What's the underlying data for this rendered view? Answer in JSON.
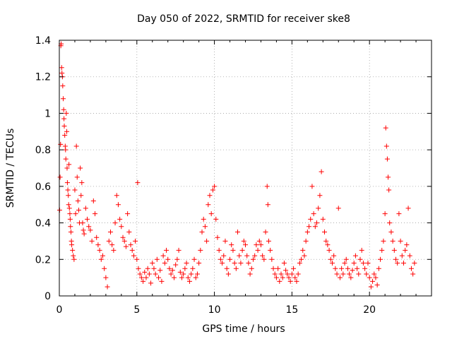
{
  "chart_data": {
    "type": "scatter",
    "title": "Day 050 of 2022, SRMTID for receiver ske8",
    "xlabel": "GPS time / hours",
    "ylabel": "SRMTID / TECUs",
    "xlim": [
      0,
      24
    ],
    "ylim": [
      0,
      1.4
    ],
    "xticks": [
      0,
      5,
      10,
      15,
      20
    ],
    "yticks": [
      0,
      0.2,
      0.4,
      0.6,
      0.8,
      1,
      1.2,
      1.4
    ],
    "xtick_labels": [
      "0",
      "5",
      "10",
      "15",
      "20"
    ],
    "ytick_labels": [
      "0",
      "0.2",
      "0.4",
      "0.6",
      "0.8",
      "1",
      "1.2",
      "1.4"
    ],
    "grid": true,
    "marker": "+",
    "color": "#ff0000",
    "series": [
      {
        "name": "SRMTID",
        "points": [
          [
            0.02,
            0.47
          ],
          [
            0.05,
            0.65
          ],
          [
            0.08,
            0.83
          ],
          [
            0.1,
            1.37
          ],
          [
            0.12,
            1.38
          ],
          [
            0.15,
            1.25
          ],
          [
            0.17,
            1.22
          ],
          [
            0.2,
            1.2
          ],
          [
            0.22,
            1.15
          ],
          [
            0.25,
            1.08
          ],
          [
            0.28,
            1.02
          ],
          [
            0.3,
            0.97
          ],
          [
            0.32,
            0.93
          ],
          [
            0.35,
            0.88
          ],
          [
            0.38,
            0.82
          ],
          [
            0.4,
            0.8
          ],
          [
            0.42,
            0.75
          ],
          [
            0.45,
            1.0
          ],
          [
            0.48,
            0.9
          ],
          [
            0.5,
            0.7
          ],
          [
            0.52,
            0.62
          ],
          [
            0.55,
            0.58
          ],
          [
            0.58,
            0.55
          ],
          [
            0.6,
            0.5
          ],
          [
            0.62,
            0.72
          ],
          [
            0.65,
            0.48
          ],
          [
            0.68,
            0.45
          ],
          [
            0.7,
            0.42
          ],
          [
            0.72,
            0.38
          ],
          [
            0.75,
            0.35
          ],
          [
            0.78,
            0.3
          ],
          [
            0.8,
            0.28
          ],
          [
            0.85,
            0.25
          ],
          [
            0.9,
            0.22
          ],
          [
            0.95,
            0.2
          ],
          [
            1.0,
            0.58
          ],
          [
            1.05,
            0.45
          ],
          [
            1.1,
            0.82
          ],
          [
            1.15,
            0.65
          ],
          [
            1.2,
            0.52
          ],
          [
            1.25,
            0.47
          ],
          [
            1.3,
            0.4
          ],
          [
            1.35,
            0.7
          ],
          [
            1.4,
            0.55
          ],
          [
            1.45,
            0.62
          ],
          [
            1.5,
            0.4
          ],
          [
            1.55,
            0.36
          ],
          [
            1.6,
            0.34
          ],
          [
            1.7,
            0.48
          ],
          [
            1.8,
            0.42
          ],
          [
            1.9,
            0.38
          ],
          [
            2.0,
            0.36
          ],
          [
            2.1,
            0.3
          ],
          [
            2.2,
            0.52
          ],
          [
            2.3,
            0.45
          ],
          [
            2.4,
            0.32
          ],
          [
            2.5,
            0.28
          ],
          [
            2.6,
            0.25
          ],
          [
            2.7,
            0.2
          ],
          [
            2.8,
            0.22
          ],
          [
            2.9,
            0.15
          ],
          [
            3.0,
            0.1
          ],
          [
            3.1,
            0.05
          ],
          [
            3.2,
            0.3
          ],
          [
            3.3,
            0.35
          ],
          [
            3.4,
            0.28
          ],
          [
            3.5,
            0.25
          ],
          [
            3.6,
            0.4
          ],
          [
            3.7,
            0.55
          ],
          [
            3.8,
            0.5
          ],
          [
            3.9,
            0.42
          ],
          [
            4.0,
            0.38
          ],
          [
            4.1,
            0.32
          ],
          [
            4.2,
            0.3
          ],
          [
            4.3,
            0.27
          ],
          [
            4.4,
            0.45
          ],
          [
            4.5,
            0.35
          ],
          [
            4.6,
            0.28
          ],
          [
            4.7,
            0.25
          ],
          [
            4.8,
            0.22
          ],
          [
            4.9,
            0.3
          ],
          [
            5.0,
            0.2
          ],
          [
            5.05,
            0.62
          ],
          [
            5.1,
            0.15
          ],
          [
            5.2,
            0.12
          ],
          [
            5.3,
            0.1
          ],
          [
            5.4,
            0.08
          ],
          [
            5.5,
            0.13
          ],
          [
            5.6,
            0.1
          ],
          [
            5.7,
            0.15
          ],
          [
            5.8,
            0.12
          ],
          [
            5.9,
            0.07
          ],
          [
            6.0,
            0.18
          ],
          [
            6.1,
            0.15
          ],
          [
            6.2,
            0.12
          ],
          [
            6.3,
            0.2
          ],
          [
            6.4,
            0.1
          ],
          [
            6.5,
            0.14
          ],
          [
            6.6,
            0.08
          ],
          [
            6.7,
            0.22
          ],
          [
            6.8,
            0.18
          ],
          [
            6.9,
            0.25
          ],
          [
            7.0,
            0.2
          ],
          [
            7.1,
            0.15
          ],
          [
            7.2,
            0.12
          ],
          [
            7.3,
            0.14
          ],
          [
            7.4,
            0.1
          ],
          [
            7.5,
            0.17
          ],
          [
            7.6,
            0.2
          ],
          [
            7.7,
            0.25
          ],
          [
            7.8,
            0.13
          ],
          [
            7.9,
            0.1
          ],
          [
            8.0,
            0.12
          ],
          [
            8.1,
            0.15
          ],
          [
            8.2,
            0.18
          ],
          [
            8.3,
            0.1
          ],
          [
            8.4,
            0.08
          ],
          [
            8.5,
            0.12
          ],
          [
            8.6,
            0.15
          ],
          [
            8.7,
            0.2
          ],
          [
            8.8,
            0.1
          ],
          [
            8.9,
            0.12
          ],
          [
            9.0,
            0.18
          ],
          [
            9.1,
            0.25
          ],
          [
            9.2,
            0.35
          ],
          [
            9.3,
            0.42
          ],
          [
            9.4,
            0.38
          ],
          [
            9.5,
            0.3
          ],
          [
            9.6,
            0.5
          ],
          [
            9.7,
            0.55
          ],
          [
            9.8,
            0.45
          ],
          [
            9.9,
            0.58
          ],
          [
            10.0,
            0.6
          ],
          [
            10.1,
            0.42
          ],
          [
            10.2,
            0.32
          ],
          [
            10.3,
            0.25
          ],
          [
            10.4,
            0.2
          ],
          [
            10.5,
            0.18
          ],
          [
            10.6,
            0.22
          ],
          [
            10.7,
            0.3
          ],
          [
            10.8,
            0.15
          ],
          [
            10.9,
            0.12
          ],
          [
            11.0,
            0.2
          ],
          [
            11.1,
            0.28
          ],
          [
            11.2,
            0.25
          ],
          [
            11.3,
            0.18
          ],
          [
            11.4,
            0.15
          ],
          [
            11.5,
            0.35
          ],
          [
            11.6,
            0.22
          ],
          [
            11.7,
            0.18
          ],
          [
            11.8,
            0.25
          ],
          [
            11.9,
            0.3
          ],
          [
            12.0,
            0.28
          ],
          [
            12.1,
            0.22
          ],
          [
            12.2,
            0.18
          ],
          [
            12.3,
            0.12
          ],
          [
            12.4,
            0.15
          ],
          [
            12.5,
            0.2
          ],
          [
            12.6,
            0.22
          ],
          [
            12.7,
            0.28
          ],
          [
            12.8,
            0.25
          ],
          [
            12.9,
            0.3
          ],
          [
            13.0,
            0.28
          ],
          [
            13.1,
            0.22
          ],
          [
            13.2,
            0.2
          ],
          [
            13.3,
            0.35
          ],
          [
            13.4,
            0.6
          ],
          [
            13.45,
            0.5
          ],
          [
            13.5,
            0.3
          ],
          [
            13.6,
            0.25
          ],
          [
            13.7,
            0.2
          ],
          [
            13.8,
            0.15
          ],
          [
            13.9,
            0.12
          ],
          [
            14.0,
            0.1
          ],
          [
            14.1,
            0.15
          ],
          [
            14.2,
            0.08
          ],
          [
            14.3,
            0.12
          ],
          [
            14.4,
            0.1
          ],
          [
            14.5,
            0.18
          ],
          [
            14.6,
            0.14
          ],
          [
            14.7,
            0.12
          ],
          [
            14.8,
            0.1
          ],
          [
            14.9,
            0.08
          ],
          [
            15.0,
            0.12
          ],
          [
            15.1,
            0.15
          ],
          [
            15.2,
            0.1
          ],
          [
            15.3,
            0.08
          ],
          [
            15.4,
            0.12
          ],
          [
            15.5,
            0.18
          ],
          [
            15.6,
            0.2
          ],
          [
            15.7,
            0.25
          ],
          [
            15.8,
            0.22
          ],
          [
            15.9,
            0.3
          ],
          [
            16.0,
            0.35
          ],
          [
            16.1,
            0.38
          ],
          [
            16.2,
            0.42
          ],
          [
            16.3,
            0.6
          ],
          [
            16.4,
            0.45
          ],
          [
            16.5,
            0.38
          ],
          [
            16.6,
            0.4
          ],
          [
            16.7,
            0.48
          ],
          [
            16.8,
            0.55
          ],
          [
            16.9,
            0.68
          ],
          [
            17.0,
            0.42
          ],
          [
            17.1,
            0.35
          ],
          [
            17.2,
            0.3
          ],
          [
            17.3,
            0.28
          ],
          [
            17.4,
            0.25
          ],
          [
            17.5,
            0.2
          ],
          [
            17.6,
            0.18
          ],
          [
            17.7,
            0.22
          ],
          [
            17.8,
            0.15
          ],
          [
            17.9,
            0.12
          ],
          [
            18.0,
            0.48
          ],
          [
            18.1,
            0.1
          ],
          [
            18.2,
            0.15
          ],
          [
            18.3,
            0.12
          ],
          [
            18.4,
            0.18
          ],
          [
            18.5,
            0.2
          ],
          [
            18.6,
            0.15
          ],
          [
            18.7,
            0.12
          ],
          [
            18.8,
            0.1
          ],
          [
            18.9,
            0.14
          ],
          [
            19.0,
            0.18
          ],
          [
            19.1,
            0.22
          ],
          [
            19.2,
            0.15
          ],
          [
            19.3,
            0.12
          ],
          [
            19.4,
            0.2
          ],
          [
            19.5,
            0.25
          ],
          [
            19.6,
            0.18
          ],
          [
            19.7,
            0.15
          ],
          [
            19.8,
            0.12
          ],
          [
            19.9,
            0.18
          ],
          [
            20.0,
            0.1
          ],
          [
            20.1,
            0.05
          ],
          [
            20.2,
            0.08
          ],
          [
            20.3,
            0.12
          ],
          [
            20.4,
            0.1
          ],
          [
            20.5,
            0.06
          ],
          [
            20.6,
            0.15
          ],
          [
            20.7,
            0.2
          ],
          [
            20.8,
            0.25
          ],
          [
            20.9,
            0.3
          ],
          [
            21.0,
            0.45
          ],
          [
            21.05,
            0.92
          ],
          [
            21.1,
            0.82
          ],
          [
            21.15,
            0.75
          ],
          [
            21.2,
            0.65
          ],
          [
            21.25,
            0.58
          ],
          [
            21.3,
            0.4
          ],
          [
            21.4,
            0.35
          ],
          [
            21.5,
            0.3
          ],
          [
            21.6,
            0.25
          ],
          [
            21.7,
            0.2
          ],
          [
            21.8,
            0.18
          ],
          [
            21.9,
            0.45
          ],
          [
            22.0,
            0.3
          ],
          [
            22.1,
            0.22
          ],
          [
            22.2,
            0.18
          ],
          [
            22.3,
            0.25
          ],
          [
            22.4,
            0.28
          ],
          [
            22.5,
            0.48
          ],
          [
            22.6,
            0.22
          ],
          [
            22.7,
            0.15
          ],
          [
            22.8,
            0.12
          ],
          [
            22.9,
            0.18
          ]
        ]
      }
    ]
  }
}
